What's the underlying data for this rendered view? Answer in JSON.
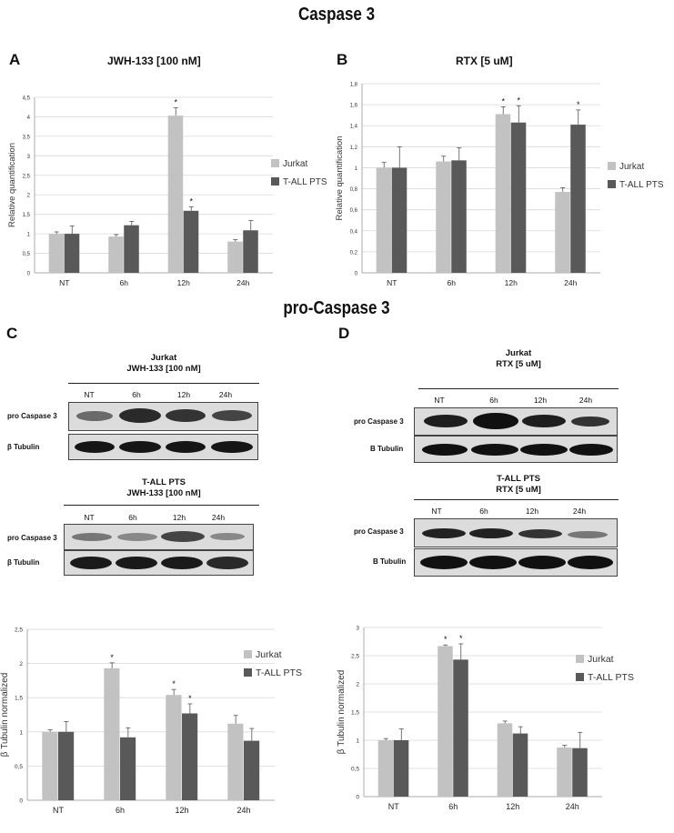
{
  "figure": {
    "title_top": "Caspase 3",
    "title_middle": "pro-Caspase 3"
  },
  "panels": {
    "A": {
      "letter": "A",
      "title": "JWH-133 [100 nM]"
    },
    "B": {
      "letter": "B",
      "title": "RTX [5 uM]"
    },
    "C": {
      "letter": "C"
    },
    "D": {
      "letter": "D"
    }
  },
  "blots": {
    "C_top": {
      "header_line1": "Jurkat",
      "header_line2": "JWH-133 [100 nM]",
      "lanes": [
        "NT",
        "6h",
        "12h",
        "24h"
      ],
      "row1": "pro Caspase 3",
      "row2": "β Tubulin"
    },
    "C_bottom": {
      "header_line1": "T-ALL PTS",
      "header_line2": "JWH-133 [100 nM]",
      "lanes": [
        "NT",
        "6h",
        "12h",
        "24h"
      ],
      "row1": "pro Caspase 3",
      "row2": "β Tubulin"
    },
    "D_top": {
      "header_line1": "Jurkat",
      "header_line2": "RTX [5 uM]",
      "lanes": [
        "NT",
        "6h",
        "12h",
        "24h"
      ],
      "row1": "pro Caspase 3",
      "row2": "B Tubulin"
    },
    "D_bottom": {
      "header_line1": "T-ALL PTS",
      "header_line2": "RTX [5 uM]",
      "lanes": [
        "NT",
        "6h",
        "12h",
        "24h"
      ],
      "row1": "pro Caspase 3",
      "row2": "B Tubulin"
    }
  },
  "colors": {
    "jurkat": "#c2c2c2",
    "tall": "#595959",
    "grid": "#d9d9d9"
  },
  "chart_data": [
    {
      "id": "A",
      "type": "bar",
      "categories": [
        "NT",
        "6h",
        "12h",
        "24h"
      ],
      "series": [
        {
          "name": "Jurkat",
          "values": [
            1.0,
            0.93,
            4.03,
            0.8
          ],
          "errors": [
            0.05,
            0.05,
            0.2,
            0.05
          ]
        },
        {
          "name": "T-ALL PTS",
          "values": [
            1.0,
            1.22,
            1.59,
            1.09
          ],
          "errors": [
            0.2,
            0.1,
            0.1,
            0.25
          ]
        }
      ],
      "significant": [
        [
          false,
          false,
          true,
          false
        ],
        [
          false,
          false,
          true,
          false
        ]
      ],
      "ylabel": "Relative quantification",
      "ylim": [
        0,
        4.5
      ],
      "ticks": [
        0,
        0.5,
        1,
        1.5,
        2,
        2.5,
        3,
        3.5,
        4,
        4.5
      ],
      "tick_labels": [
        "0",
        "0,5",
        "1",
        "1,5",
        "2",
        "2,5",
        "3",
        "3,5",
        "4",
        "4,5"
      ],
      "grid": true,
      "legend": "right"
    },
    {
      "id": "B",
      "type": "bar",
      "categories": [
        "NT",
        "6h",
        "12h",
        "24h"
      ],
      "series": [
        {
          "name": "Jurkat",
          "values": [
            1.0,
            1.06,
            1.51,
            0.77
          ],
          "errors": [
            0.05,
            0.05,
            0.07,
            0.04
          ]
        },
        {
          "name": "T-ALL PTS",
          "values": [
            1.0,
            1.07,
            1.43,
            1.41
          ],
          "errors": [
            0.2,
            0.12,
            0.16,
            0.14
          ]
        }
      ],
      "significant": [
        [
          false,
          false,
          true,
          false
        ],
        [
          false,
          false,
          true,
          true
        ]
      ],
      "ylabel": "Relative quantification",
      "ylim": [
        0,
        1.8
      ],
      "ticks": [
        0,
        0.2,
        0.4,
        0.6,
        0.8,
        1,
        1.2,
        1.4,
        1.6,
        1.8
      ],
      "tick_labels": [
        "0",
        "0,2",
        "0,4",
        "0,6",
        "0,8",
        "1",
        "1,2",
        "1,4",
        "1,6",
        "1,8"
      ],
      "grid": true,
      "legend": "right"
    },
    {
      "id": "C",
      "type": "bar",
      "categories": [
        "NT",
        "6h",
        "12h",
        "24h"
      ],
      "series": [
        {
          "name": "Jurkat",
          "values": [
            1.0,
            1.93,
            1.54,
            1.12
          ],
          "errors": [
            0.03,
            0.08,
            0.08,
            0.12
          ]
        },
        {
          "name": "T-ALL PTS",
          "values": [
            1.0,
            0.92,
            1.27,
            0.87
          ],
          "errors": [
            0.15,
            0.14,
            0.14,
            0.18
          ]
        }
      ],
      "significant": [
        [
          false,
          true,
          true,
          false
        ],
        [
          false,
          false,
          true,
          false
        ]
      ],
      "ylabel": "β Tubulin normalized",
      "ylim": [
        0,
        2.5
      ],
      "ticks": [
        0,
        0.5,
        1,
        1.5,
        2,
        2.5
      ],
      "tick_labels": [
        "0",
        "0,5",
        "1",
        "1,5",
        "2",
        "2,5"
      ],
      "grid": true,
      "legend": "right"
    },
    {
      "id": "D",
      "type": "bar",
      "categories": [
        "NT",
        "6h",
        "12h",
        "24h"
      ],
      "series": [
        {
          "name": "Jurkat",
          "values": [
            1.0,
            2.67,
            1.3,
            0.87
          ],
          "errors": [
            0.03,
            0.02,
            0.04,
            0.04
          ]
        },
        {
          "name": "T-ALL PTS",
          "values": [
            1.0,
            2.43,
            1.12,
            0.86
          ],
          "errors": [
            0.2,
            0.28,
            0.12,
            0.28
          ]
        }
      ],
      "significant": [
        [
          false,
          true,
          false,
          false
        ],
        [
          false,
          true,
          false,
          false
        ]
      ],
      "ylabel": "β Tubulin normalized",
      "ylim": [
        0,
        3
      ],
      "ticks": [
        0,
        0.5,
        1,
        1.5,
        2,
        2.5,
        3
      ],
      "tick_labels": [
        "0",
        "0,5",
        "1",
        "1,5",
        "2",
        "2,5",
        "3"
      ],
      "grid": true,
      "legend": "right"
    }
  ]
}
